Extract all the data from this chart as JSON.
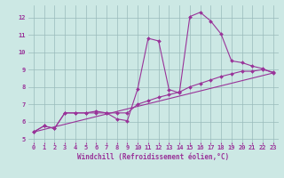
{
  "xlabel": "Windchill (Refroidissement éolien,°C)",
  "xlim": [
    -0.5,
    23.5
  ],
  "ylim": [
    4.8,
    12.7
  ],
  "xticks": [
    0,
    1,
    2,
    3,
    4,
    5,
    6,
    7,
    8,
    9,
    10,
    11,
    12,
    13,
    14,
    15,
    16,
    17,
    18,
    19,
    20,
    21,
    22,
    23
  ],
  "yticks": [
    5,
    6,
    7,
    8,
    9,
    10,
    11,
    12
  ],
  "background_color": "#cce8e4",
  "line_color": "#993399",
  "grid_color": "#99bbbb",
  "series": [
    {
      "x": [
        0,
        1,
        2,
        3,
        4,
        5,
        6,
        7,
        8,
        9,
        10,
        11,
        12,
        13,
        14,
        15,
        16,
        17,
        18,
        19,
        20,
        21,
        22,
        23
      ],
      "y": [
        5.4,
        5.75,
        5.6,
        6.5,
        6.5,
        6.5,
        6.6,
        6.5,
        6.15,
        6.05,
        7.9,
        10.8,
        10.65,
        7.85,
        7.65,
        12.05,
        12.3,
        11.8,
        11.05,
        9.5,
        9.4,
        9.2,
        9.05,
        8.8
      ],
      "marker": true
    },
    {
      "x": [
        0,
        1,
        2,
        3,
        4,
        5,
        6,
        7,
        8,
        9,
        10,
        11,
        12,
        13,
        14,
        15,
        16,
        17,
        18,
        19,
        20,
        21,
        22,
        23
      ],
      "y": [
        5.4,
        5.75,
        5.6,
        6.5,
        6.5,
        6.5,
        6.5,
        6.5,
        6.5,
        6.5,
        7.0,
        7.2,
        7.4,
        7.55,
        7.7,
        8.0,
        8.2,
        8.4,
        8.6,
        8.75,
        8.9,
        8.9,
        9.0,
        8.85
      ],
      "marker": true
    },
    {
      "x": [
        0,
        23
      ],
      "y": [
        5.4,
        8.8
      ],
      "marker": false
    }
  ],
  "markersize": 2.0,
  "linewidth": 0.8,
  "tick_fontsize": 5.0,
  "xlabel_fontsize": 5.5
}
